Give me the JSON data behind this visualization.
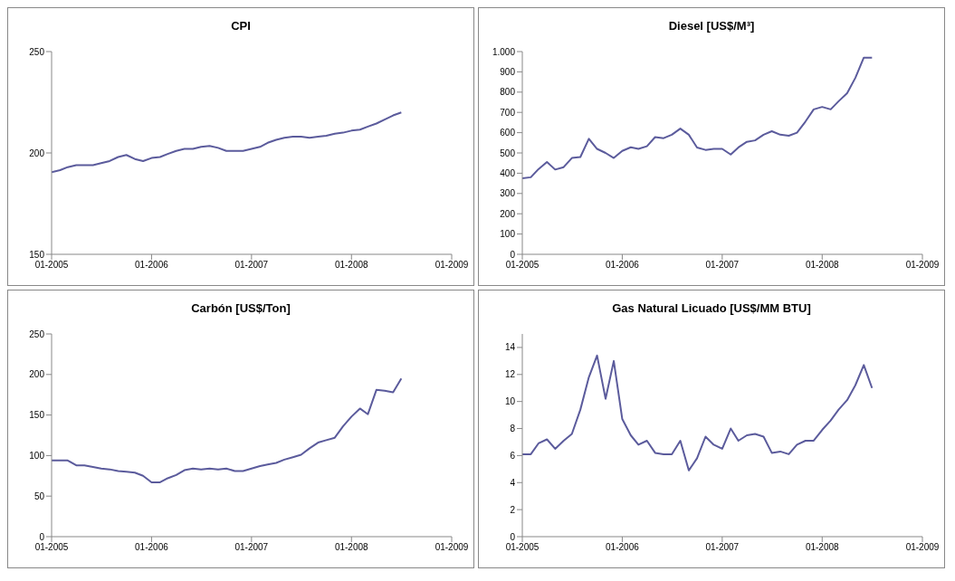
{
  "chart_data": [
    {
      "type": "line",
      "title": "CPI",
      "x": [
        "2005-01",
        "2005-02",
        "2005-03",
        "2005-04",
        "2005-05",
        "2005-06",
        "2005-07",
        "2005-08",
        "2005-09",
        "2005-10",
        "2005-11",
        "2005-12",
        "2006-01",
        "2006-02",
        "2006-03",
        "2006-04",
        "2006-05",
        "2006-06",
        "2006-07",
        "2006-08",
        "2006-09",
        "2006-10",
        "2006-11",
        "2006-12",
        "2007-01",
        "2007-02",
        "2007-03",
        "2007-04",
        "2007-05",
        "2007-06",
        "2007-07",
        "2007-08",
        "2007-09",
        "2007-10",
        "2007-11",
        "2007-12",
        "2008-01",
        "2008-02",
        "2008-03",
        "2008-04",
        "2008-05",
        "2008-06",
        "2008-07"
      ],
      "marker": "none",
      "color": "#5b5b9c",
      "xlim": [
        "2005-01",
        "2009-01"
      ],
      "xticks": [
        {
          "value": "2005-01",
          "label": "01-2005"
        },
        {
          "value": "2006-01",
          "label": "01-2006"
        },
        {
          "value": "2007-01",
          "label": "01-2007"
        },
        {
          "value": "2008-01",
          "label": "01-2008"
        },
        {
          "value": "2009-01",
          "label": "01-2009"
        }
      ],
      "ylim": [
        150,
        250
      ],
      "yticks": [
        150,
        200,
        250
      ],
      "values": [
        190.5,
        191.5,
        193,
        194,
        194,
        194,
        195,
        196,
        198,
        199,
        197,
        196,
        197.5,
        198,
        199.5,
        201,
        202,
        202,
        203,
        203.5,
        202.5,
        201,
        201,
        201,
        202,
        203,
        205,
        206.5,
        207.5,
        208,
        208,
        207.5,
        208,
        208.5,
        209.5,
        210,
        211,
        211.5,
        213,
        214.5,
        216.5,
        218.5,
        220
      ]
    },
    {
      "type": "line",
      "title": "Diesel [US$/M³]",
      "x": [
        "2005-01",
        "2005-02",
        "2005-03",
        "2005-04",
        "2005-05",
        "2005-06",
        "2005-07",
        "2005-08",
        "2005-09",
        "2005-10",
        "2005-11",
        "2005-12",
        "2006-01",
        "2006-02",
        "2006-03",
        "2006-04",
        "2006-05",
        "2006-06",
        "2006-07",
        "2006-08",
        "2006-09",
        "2006-10",
        "2006-11",
        "2006-12",
        "2007-01",
        "2007-02",
        "2007-03",
        "2007-04",
        "2007-05",
        "2007-06",
        "2007-07",
        "2007-08",
        "2007-09",
        "2007-10",
        "2007-11",
        "2007-12",
        "2008-01",
        "2008-02",
        "2008-03",
        "2008-04",
        "2008-05",
        "2008-06",
        "2008-07"
      ],
      "marker": "none",
      "color": "#5b5b9c",
      "xlim": [
        "2005-01",
        "2009-01"
      ],
      "xticks": [
        {
          "value": "2005-01",
          "label": "01-2005"
        },
        {
          "value": "2006-01",
          "label": "01-2006"
        },
        {
          "value": "2007-01",
          "label": "01-2007"
        },
        {
          "value": "2008-01",
          "label": "01-2008"
        },
        {
          "value": "2009-01",
          "label": "01-2009"
        }
      ],
      "ylim": [
        0,
        1000
      ],
      "yticks": [
        0,
        100,
        200,
        300,
        400,
        500,
        600,
        700,
        800,
        900,
        {
          "value": 1000,
          "label": "1.000"
        }
      ],
      "values": [
        375,
        380,
        420,
        455,
        418,
        430,
        475,
        480,
        570,
        520,
        500,
        475,
        510,
        528,
        520,
        533,
        578,
        573,
        590,
        620,
        590,
        527,
        515,
        520,
        520,
        492,
        527,
        555,
        562,
        590,
        607,
        590,
        585,
        600,
        655,
        715,
        727,
        715,
        755,
        795,
        870,
        970,
        970
      ]
    },
    {
      "type": "line",
      "title": "Carbón [US$/Ton]",
      "x": [
        "2005-01",
        "2005-02",
        "2005-03",
        "2005-04",
        "2005-05",
        "2005-06",
        "2005-07",
        "2005-08",
        "2005-09",
        "2005-10",
        "2005-11",
        "2005-12",
        "2006-01",
        "2006-02",
        "2006-03",
        "2006-04",
        "2006-05",
        "2006-06",
        "2006-07",
        "2006-08",
        "2006-09",
        "2006-10",
        "2006-11",
        "2006-12",
        "2007-01",
        "2007-02",
        "2007-03",
        "2007-04",
        "2007-05",
        "2007-06",
        "2007-07",
        "2007-08",
        "2007-09",
        "2007-10",
        "2007-11",
        "2007-12",
        "2008-01",
        "2008-02",
        "2008-03",
        "2008-04",
        "2008-05",
        "2008-06",
        "2008-07"
      ],
      "marker": "none",
      "color": "#5b5b9c",
      "xlim": [
        "2005-01",
        "2009-01"
      ],
      "xticks": [
        {
          "value": "2005-01",
          "label": "01-2005"
        },
        {
          "value": "2006-01",
          "label": "01-2006"
        },
        {
          "value": "2007-01",
          "label": "01-2007"
        },
        {
          "value": "2008-01",
          "label": "01-2008"
        },
        {
          "value": "2009-01",
          "label": "01-2009"
        }
      ],
      "ylim": [
        0,
        250
      ],
      "yticks": [
        0,
        50,
        100,
        150,
        200,
        250
      ],
      "values": [
        94,
        94,
        94,
        88,
        88,
        86,
        84,
        83,
        81,
        80,
        79,
        75,
        67,
        67,
        72,
        76,
        82,
        84,
        83,
        84,
        83,
        84,
        81,
        81,
        84,
        87,
        89,
        91,
        95,
        98,
        101,
        109,
        116,
        119,
        122,
        136,
        148,
        158,
        151,
        181,
        180,
        178,
        195
      ]
    },
    {
      "type": "line",
      "title": "Gas Natural Licuado [US$/MM BTU]",
      "x": [
        "2005-01",
        "2005-02",
        "2005-03",
        "2005-04",
        "2005-05",
        "2005-06",
        "2005-07",
        "2005-08",
        "2005-09",
        "2005-10",
        "2005-11",
        "2005-12",
        "2006-01",
        "2006-02",
        "2006-03",
        "2006-04",
        "2006-05",
        "2006-06",
        "2006-07",
        "2006-08",
        "2006-09",
        "2006-10",
        "2006-11",
        "2006-12",
        "2007-01",
        "2007-02",
        "2007-03",
        "2007-04",
        "2007-05",
        "2007-06",
        "2007-07",
        "2007-08",
        "2007-09",
        "2007-10",
        "2007-11",
        "2007-12",
        "2008-01",
        "2008-02",
        "2008-03",
        "2008-04",
        "2008-05",
        "2008-06",
        "2008-07"
      ],
      "marker": "none",
      "color": "#5b5b9c",
      "xlim": [
        "2005-01",
        "2009-01"
      ],
      "xticks": [
        {
          "value": "2005-01",
          "label": "01-2005"
        },
        {
          "value": "2006-01",
          "label": "01-2006"
        },
        {
          "value": "2007-01",
          "label": "01-2007"
        },
        {
          "value": "2008-01",
          "label": "01-2008"
        },
        {
          "value": "2009-01",
          "label": "01-2009"
        }
      ],
      "ylim": [
        0,
        15
      ],
      "yticks": [
        0,
        2,
        4,
        6,
        8,
        10,
        12,
        14
      ],
      "values": [
        6.1,
        6.1,
        6.9,
        7.2,
        6.5,
        7.1,
        7.6,
        9.4,
        11.8,
        13.4,
        10.2,
        13.0,
        8.7,
        7.5,
        6.8,
        7.1,
        6.2,
        6.1,
        6.1,
        7.1,
        4.9,
        5.8,
        7.4,
        6.8,
        6.5,
        8.0,
        7.1,
        7.5,
        7.6,
        7.4,
        6.2,
        6.3,
        6.1,
        6.8,
        7.1,
        7.1,
        7.9,
        8.6,
        9.4,
        10.1,
        11.2,
        12.7,
        11.0
      ]
    }
  ]
}
